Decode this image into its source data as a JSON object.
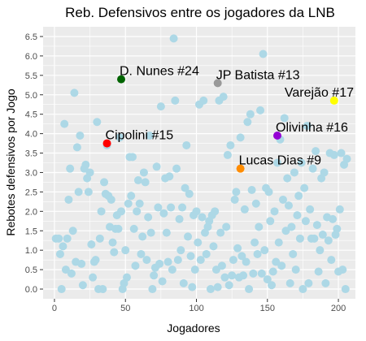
{
  "chart_data": {
    "type": "scatter",
    "title": "Reb. Defensivos entre os jogadores da LNB",
    "xlabel": "Jogadores",
    "ylabel": "Rebotes defensivos por Jogo",
    "xlim": [
      -8,
      212
    ],
    "ylim": [
      -0.25,
      6.75
    ],
    "xticks": [
      0,
      50,
      100,
      150,
      200
    ],
    "yticks": [
      0.0,
      0.5,
      1.0,
      1.5,
      2.0,
      2.5,
      3.0,
      3.5,
      4.0,
      4.5,
      5.0,
      5.5,
      6.0,
      6.5
    ],
    "ytick_labels": [
      "0.0",
      "0.5",
      "1.0",
      "1.5",
      "2.0",
      "2.5",
      "3.0",
      "3.5",
      "4.0",
      "4.5",
      "5.0",
      "5.5",
      "6.0",
      "6.5"
    ],
    "background_color": "#ebebeb",
    "grid_color": "#ffffff",
    "background_point_color": "#add8e6",
    "background_points": [
      [
        1,
        1.3
      ],
      [
        3,
        1.3
      ],
      [
        4,
        0.9
      ],
      [
        5,
        0.0
      ],
      [
        6,
        1.1
      ],
      [
        7,
        4.25
      ],
      [
        8,
        0.5
      ],
      [
        9,
        1.3
      ],
      [
        10,
        2.3
      ],
      [
        11,
        3.1
      ],
      [
        12,
        0.4
      ],
      [
        13,
        1.5
      ],
      [
        14,
        5.05
      ],
      [
        15,
        0.7
      ],
      [
        16,
        3.65
      ],
      [
        17,
        2.5
      ],
      [
        18,
        3.95
      ],
      [
        19,
        0.65
      ],
      [
        20,
        0.1
      ],
      [
        21,
        3.1
      ],
      [
        22,
        3.2
      ],
      [
        23,
        2.85
      ],
      [
        24,
        2.5
      ],
      [
        25,
        3.0
      ],
      [
        26,
        1.15
      ],
      [
        27,
        0.3
      ],
      [
        28,
        0.7
      ],
      [
        29,
        0.75
      ],
      [
        30,
        4.3
      ],
      [
        31,
        0.0
      ],
      [
        32,
        1.3
      ],
      [
        33,
        2.0
      ],
      [
        34,
        0.0
      ],
      [
        35,
        2.75
      ],
      [
        36,
        2.45
      ],
      [
        37,
        3.7
      ],
      [
        38,
        2.4
      ],
      [
        39,
        1.6
      ],
      [
        40,
        2.3
      ],
      [
        41,
        1.2
      ],
      [
        42,
        0.95
      ],
      [
        43,
        1.55
      ],
      [
        44,
        1.9
      ],
      [
        45,
        1.55
      ],
      [
        46,
        3.9
      ],
      [
        47,
        2.0
      ],
      [
        48,
        0.0
      ],
      [
        49,
        0.15
      ],
      [
        50,
        1.0
      ],
      [
        51,
        0.3
      ],
      [
        52,
        2.2
      ],
      [
        53,
        3.4
      ],
      [
        54,
        2.4
      ],
      [
        55,
        3.4
      ],
      [
        56,
        1.55
      ],
      [
        57,
        0.6
      ],
      [
        58,
        2.0
      ],
      [
        59,
        2.8
      ],
      [
        60,
        2.2
      ],
      [
        61,
        0.9
      ],
      [
        62,
        1.35
      ],
      [
        63,
        3.0
      ],
      [
        64,
        2.75
      ],
      [
        65,
        0.75
      ],
      [
        66,
        1.85
      ],
      [
        67,
        3.95
      ],
      [
        68,
        1.45
      ],
      [
        69,
        0.0
      ],
      [
        70,
        0.35
      ],
      [
        71,
        0.55
      ],
      [
        72,
        3.15
      ],
      [
        73,
        2.1
      ],
      [
        74,
        0.65
      ],
      [
        75,
        4.7
      ],
      [
        76,
        0.2
      ],
      [
        77,
        1.95
      ],
      [
        78,
        2.85
      ],
      [
        79,
        1.45
      ],
      [
        80,
        0.7
      ],
      [
        81,
        2.9
      ],
      [
        82,
        2.1
      ],
      [
        83,
        0.5
      ],
      [
        84,
        6.45
      ],
      [
        85,
        4.85
      ],
      [
        86,
        3.1
      ],
      [
        87,
        0.75
      ],
      [
        88,
        1.8
      ],
      [
        89,
        1.0
      ],
      [
        90,
        2.1
      ],
      [
        91,
        0.15
      ],
      [
        92,
        2.6
      ],
      [
        93,
        3.7
      ],
      [
        94,
        1.35
      ],
      [
        95,
        2.45
      ],
      [
        96,
        0.85
      ],
      [
        97,
        0.05
      ],
      [
        98,
        1.9
      ],
      [
        99,
        0.5
      ],
      [
        100,
        2.0
      ],
      [
        101,
        1.2
      ],
      [
        102,
        4.75
      ],
      [
        103,
        0.75
      ],
      [
        104,
        1.85
      ],
      [
        105,
        4.85
      ],
      [
        106,
        1.45
      ],
      [
        107,
        0.9
      ],
      [
        108,
        1.6
      ],
      [
        109,
        1.75
      ],
      [
        110,
        0.0
      ],
      [
        111,
        1.9
      ],
      [
        112,
        1.1
      ],
      [
        113,
        2.0
      ],
      [
        114,
        0.5
      ],
      [
        115,
        0.05
      ],
      [
        116,
        4.85
      ],
      [
        117,
        1.45
      ],
      [
        118,
        0.6
      ],
      [
        119,
        4.95
      ],
      [
        120,
        0.3
      ],
      [
        121,
        1.6
      ],
      [
        122,
        3.45
      ],
      [
        123,
        0.1
      ],
      [
        124,
        3.7
      ],
      [
        125,
        0.35
      ],
      [
        126,
        0.75
      ],
      [
        127,
        2.3
      ],
      [
        128,
        2.5
      ],
      [
        129,
        1.05
      ],
      [
        130,
        0.3
      ],
      [
        131,
        3.9
      ],
      [
        132,
        0.85
      ],
      [
        133,
        0.35
      ],
      [
        134,
        2.05
      ],
      [
        135,
        0.7
      ],
      [
        136,
        4.3
      ],
      [
        137,
        0.0
      ],
      [
        138,
        4.5
      ],
      [
        139,
        2.55
      ],
      [
        140,
        0.4
      ],
      [
        141,
        1.2
      ],
      [
        142,
        2.2
      ],
      [
        143,
        0.9
      ],
      [
        144,
        1.6
      ],
      [
        145,
        4.6
      ],
      [
        146,
        0.4
      ],
      [
        147,
        6.05
      ],
      [
        148,
        1.0
      ],
      [
        149,
        2.6
      ],
      [
        150,
        0.25
      ],
      [
        151,
        2.5
      ],
      [
        152,
        1.75
      ],
      [
        153,
        0.1
      ],
      [
        154,
        0.45
      ],
      [
        155,
        2.0
      ],
      [
        156,
        0.7
      ],
      [
        157,
        3.25
      ],
      [
        158,
        1.2
      ],
      [
        159,
        3.85
      ],
      [
        160,
        0.6
      ],
      [
        161,
        2.3
      ],
      [
        162,
        4.4
      ],
      [
        163,
        1.5
      ],
      [
        164,
        2.85
      ],
      [
        165,
        2.15
      ],
      [
        166,
        0.15
      ],
      [
        167,
        1.6
      ],
      [
        168,
        0.9
      ],
      [
        169,
        3.0
      ],
      [
        170,
        0.5
      ],
      [
        171,
        1.9
      ],
      [
        172,
        2.4
      ],
      [
        173,
        1.3
      ],
      [
        174,
        3.25
      ],
      [
        175,
        0.0
      ],
      [
        176,
        2.6
      ],
      [
        177,
        1.75
      ],
      [
        178,
        4.2
      ],
      [
        179,
        0.15
      ],
      [
        180,
        2.05
      ],
      [
        181,
        1.3
      ],
      [
        182,
        3.1
      ],
      [
        183,
        1.3
      ],
      [
        184,
        3.55
      ],
      [
        185,
        1.65
      ],
      [
        186,
        0.45
      ],
      [
        187,
        1.0
      ],
      [
        188,
        2.85
      ],
      [
        189,
        1.4
      ],
      [
        190,
        3.0
      ],
      [
        191,
        0.15
      ],
      [
        192,
        1.85
      ],
      [
        193,
        1.25
      ],
      [
        194,
        3.5
      ],
      [
        195,
        0.75
      ],
      [
        196,
        1.8
      ],
      [
        197,
        3.45
      ],
      [
        198,
        1.4
      ],
      [
        199,
        1.55
      ],
      [
        200,
        0.45
      ],
      [
        201,
        2.05
      ],
      [
        202,
        3.5
      ],
      [
        203,
        0.5
      ],
      [
        204,
        3.2
      ],
      [
        205,
        0.0
      ],
      [
        206,
        3.35
      ]
    ],
    "highlighted_players": [
      {
        "label": "D. Nunes #24",
        "x": 47,
        "y": 5.4,
        "color": "#006400"
      },
      {
        "label": "JP Batista #13",
        "x": 115,
        "y": 5.3,
        "color": "#999999"
      },
      {
        "label": "Varejão #17",
        "x": 197,
        "y": 4.85,
        "color": "#ffff00"
      },
      {
        "label": "Olivinha #16",
        "x": 157,
        "y": 3.95,
        "color": "#9400d3"
      },
      {
        "label": "Cipolini #15",
        "x": 37,
        "y": 3.75,
        "color": "#ff0000"
      },
      {
        "label": "Lucas Dias #9",
        "x": 131,
        "y": 3.1,
        "color": "#ff8c00"
      }
    ]
  }
}
